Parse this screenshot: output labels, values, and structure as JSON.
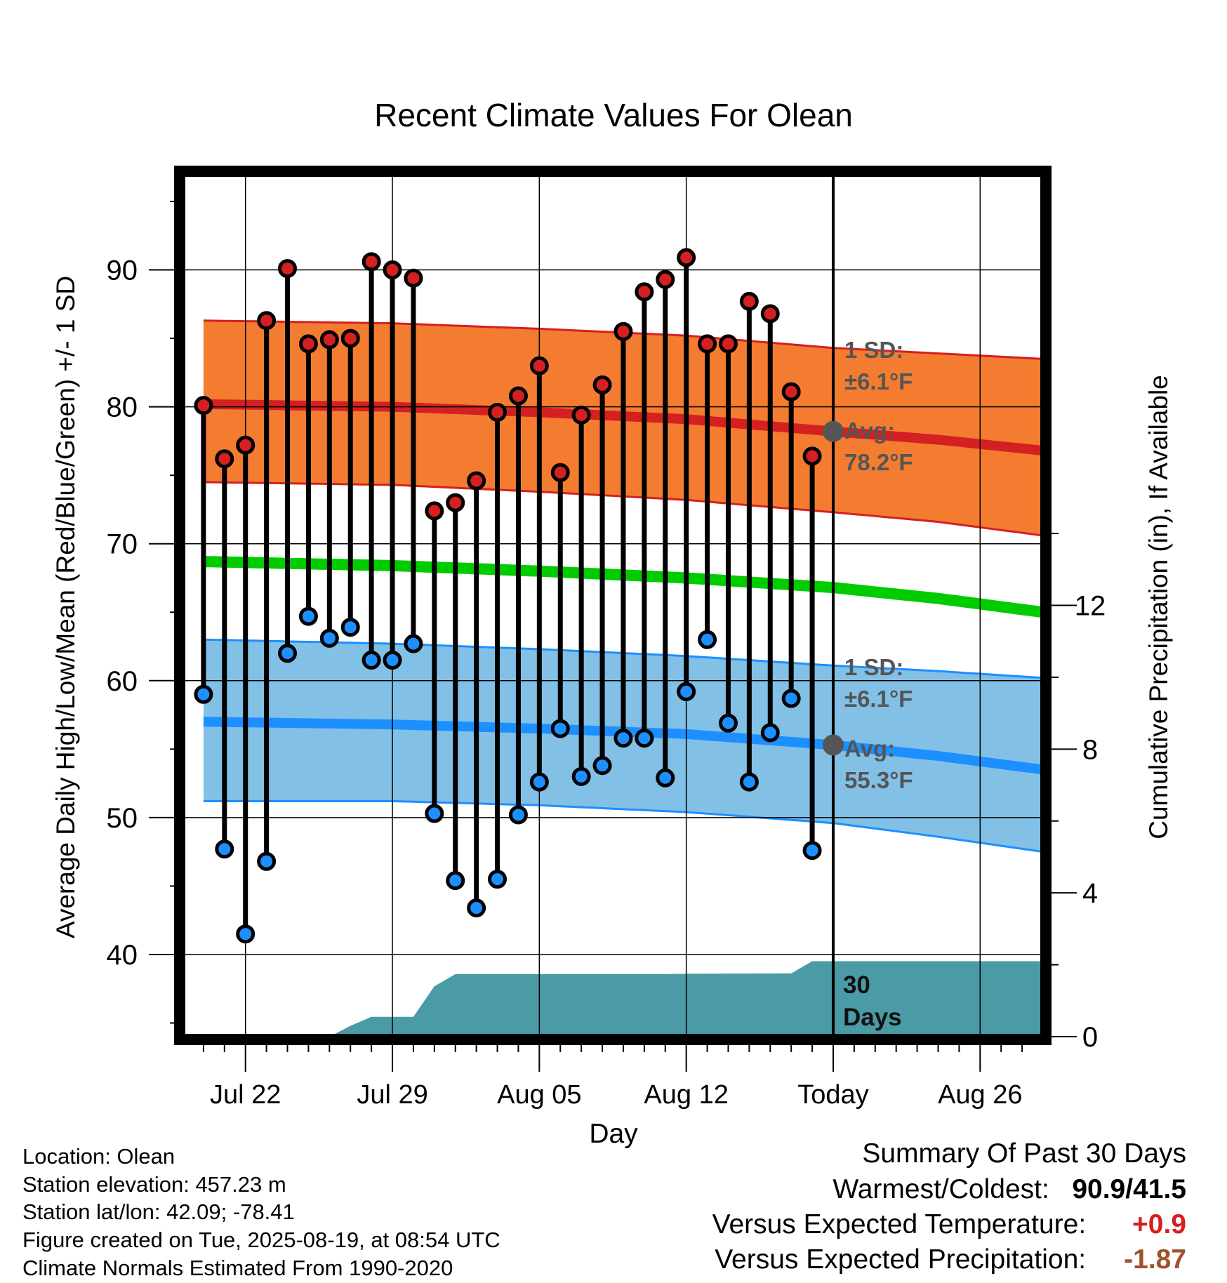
{
  "chart_data": {
    "type": "line",
    "title": "Recent Climate Values For Olean",
    "xlabel": "Day",
    "ylabel_left": "Average Daily High/Low/Mean (Red/Blue/Green) +/- 1 SD",
    "ylabel_right": "Cumulative Precipitation (in), If Available",
    "x_range": [
      "2025-07-19",
      "2025-08-29"
    ],
    "ylim_left": [
      34,
      97
    ],
    "ylim_right": [
      0,
      24
    ],
    "left_ticks": [
      40,
      50,
      60,
      70,
      80,
      90
    ],
    "right_ticks": [
      0,
      4,
      8,
      12
    ],
    "x_ticks": [
      {
        "date": "2025-07-22",
        "label": "Jul 22"
      },
      {
        "date": "2025-07-29",
        "label": "Jul 29"
      },
      {
        "date": "2025-08-05",
        "label": "Aug 05"
      },
      {
        "date": "2025-08-12",
        "label": "Aug 12"
      },
      {
        "date": "2025-08-19",
        "label": "Today"
      },
      {
        "date": "2025-08-26",
        "label": "Aug 26"
      }
    ],
    "today": "2025-08-19",
    "grid": true,
    "normals": {
      "dates": [
        "2025-07-20",
        "2025-07-29",
        "2025-08-05",
        "2025-08-12",
        "2025-08-19",
        "2025-08-24",
        "2025-08-29"
      ],
      "high_avg": [
        80.2,
        80.0,
        79.6,
        79.1,
        78.2,
        77.6,
        76.8
      ],
      "high_upper": [
        86.3,
        86.1,
        85.7,
        85.2,
        84.3,
        83.9,
        83.5
      ],
      "high_lower": [
        74.5,
        74.3,
        73.8,
        73.2,
        72.3,
        71.6,
        70.6
      ],
      "mean": [
        68.7,
        68.4,
        68.0,
        67.5,
        66.8,
        66.0,
        65.0
      ],
      "low_avg": [
        57.0,
        56.8,
        56.5,
        56.1,
        55.3,
        54.5,
        53.5
      ],
      "low_upper": [
        63.0,
        62.7,
        62.3,
        61.8,
        61.1,
        60.7,
        60.2
      ],
      "low_lower": [
        51.2,
        51.2,
        50.9,
        50.4,
        49.6,
        48.6,
        47.5
      ]
    },
    "series": [
      {
        "name": "High",
        "dates": [
          "2025-07-20",
          "2025-07-21",
          "2025-07-22",
          "2025-07-23",
          "2025-07-24",
          "2025-07-25",
          "2025-07-26",
          "2025-07-27",
          "2025-07-28",
          "2025-07-29",
          "2025-07-30",
          "2025-07-31",
          "2025-08-01",
          "2025-08-02",
          "2025-08-03",
          "2025-08-04",
          "2025-08-05",
          "2025-08-06",
          "2025-08-07",
          "2025-08-08",
          "2025-08-09",
          "2025-08-10",
          "2025-08-11",
          "2025-08-12",
          "2025-08-13",
          "2025-08-14",
          "2025-08-15",
          "2025-08-16",
          "2025-08-17",
          "2025-08-18"
        ],
        "values": [
          80.1,
          76.2,
          77.2,
          86.3,
          90.1,
          84.6,
          84.9,
          85.0,
          90.6,
          90.0,
          89.4,
          72.4,
          73.0,
          74.6,
          79.6,
          80.8,
          83.0,
          75.2,
          79.4,
          81.6,
          85.5,
          88.4,
          89.3,
          90.9,
          84.6,
          84.6,
          87.7,
          86.8,
          81.1,
          76.4
        ]
      },
      {
        "name": "Low",
        "dates": [
          "2025-07-20",
          "2025-07-21",
          "2025-07-22",
          "2025-07-23",
          "2025-07-24",
          "2025-07-25",
          "2025-07-26",
          "2025-07-27",
          "2025-07-28",
          "2025-07-29",
          "2025-07-30",
          "2025-07-31",
          "2025-08-01",
          "2025-08-02",
          "2025-08-03",
          "2025-08-04",
          "2025-08-05",
          "2025-08-06",
          "2025-08-07",
          "2025-08-08",
          "2025-08-09",
          "2025-08-10",
          "2025-08-11",
          "2025-08-12",
          "2025-08-13",
          "2025-08-14",
          "2025-08-15",
          "2025-08-16",
          "2025-08-17",
          "2025-08-18"
        ],
        "values": [
          59.0,
          47.7,
          41.5,
          46.8,
          62.0,
          64.7,
          63.1,
          63.9,
          61.5,
          61.5,
          62.7,
          50.3,
          45.4,
          43.4,
          45.5,
          50.2,
          52.6,
          56.5,
          53.0,
          53.8,
          55.8,
          55.8,
          52.9,
          59.2,
          63.0,
          56.9,
          52.6,
          56.2,
          58.7,
          47.6
        ]
      }
    ],
    "precipitation": {
      "dates": [
        "2025-07-19",
        "2025-07-23",
        "2025-07-24",
        "2025-07-25",
        "2025-07-26",
        "2025-07-27",
        "2025-07-28",
        "2025-07-29",
        "2025-07-30",
        "2025-07-31",
        "2025-08-01",
        "2025-08-06",
        "2025-08-11",
        "2025-08-12",
        "2025-08-17",
        "2025-08-18",
        "2025-08-19",
        "2025-08-29"
      ],
      "values": [
        0,
        0,
        0,
        0,
        0,
        0.3,
        0.55,
        0.55,
        0.55,
        1.4,
        1.74,
        1.74,
        1.74,
        1.75,
        1.76,
        2.1,
        2.1,
        2.1
      ]
    },
    "annotations": {
      "high_sd": "1 SD:",
      "high_sd_value": "±6.1°F",
      "high_avg_label": "Avg:",
      "high_avg_value": "78.2°F",
      "low_sd": "1 SD:",
      "low_sd_value": "±6.1°F",
      "low_avg_label": "Avg:",
      "low_avg_value": "55.3°F",
      "precip_days": "30",
      "precip_days_unit": "Days"
    },
    "today_high_avg": 78.2,
    "today_low_avg": 55.3
  },
  "info": {
    "location": "Location: Olean",
    "elevation": "Station elevation: 457.23 m",
    "latlon": "Station lat/lon: 42.09; -78.41",
    "created": "Figure created on Tue, 2025-08-19, at 08:54 UTC",
    "normals": "Climate Normals Estimated From 1990-2020"
  },
  "summary": {
    "title": "Summary Of Past 30 Days",
    "warmest_label": "Warmest/Coldest:",
    "warmest_value": "90.9/41.5",
    "temp_label": "Versus Expected Temperature:",
    "temp_value": "+0.9",
    "precip_label": "Versus Expected Precipitation:",
    "precip_value": "-1.87"
  },
  "colors": {
    "high_band": "#f47c30",
    "high_line": "#d42020",
    "mean_line": "#00cc00",
    "low_band": "#82c0e6",
    "low_line": "#1e8fff",
    "precip": "#4a9ba5",
    "high_dot": "#d42020",
    "low_dot": "#1e8fff",
    "annotation": "#555555",
    "temp_anomaly": "#d42020",
    "precip_anomaly": "#a0522d"
  }
}
